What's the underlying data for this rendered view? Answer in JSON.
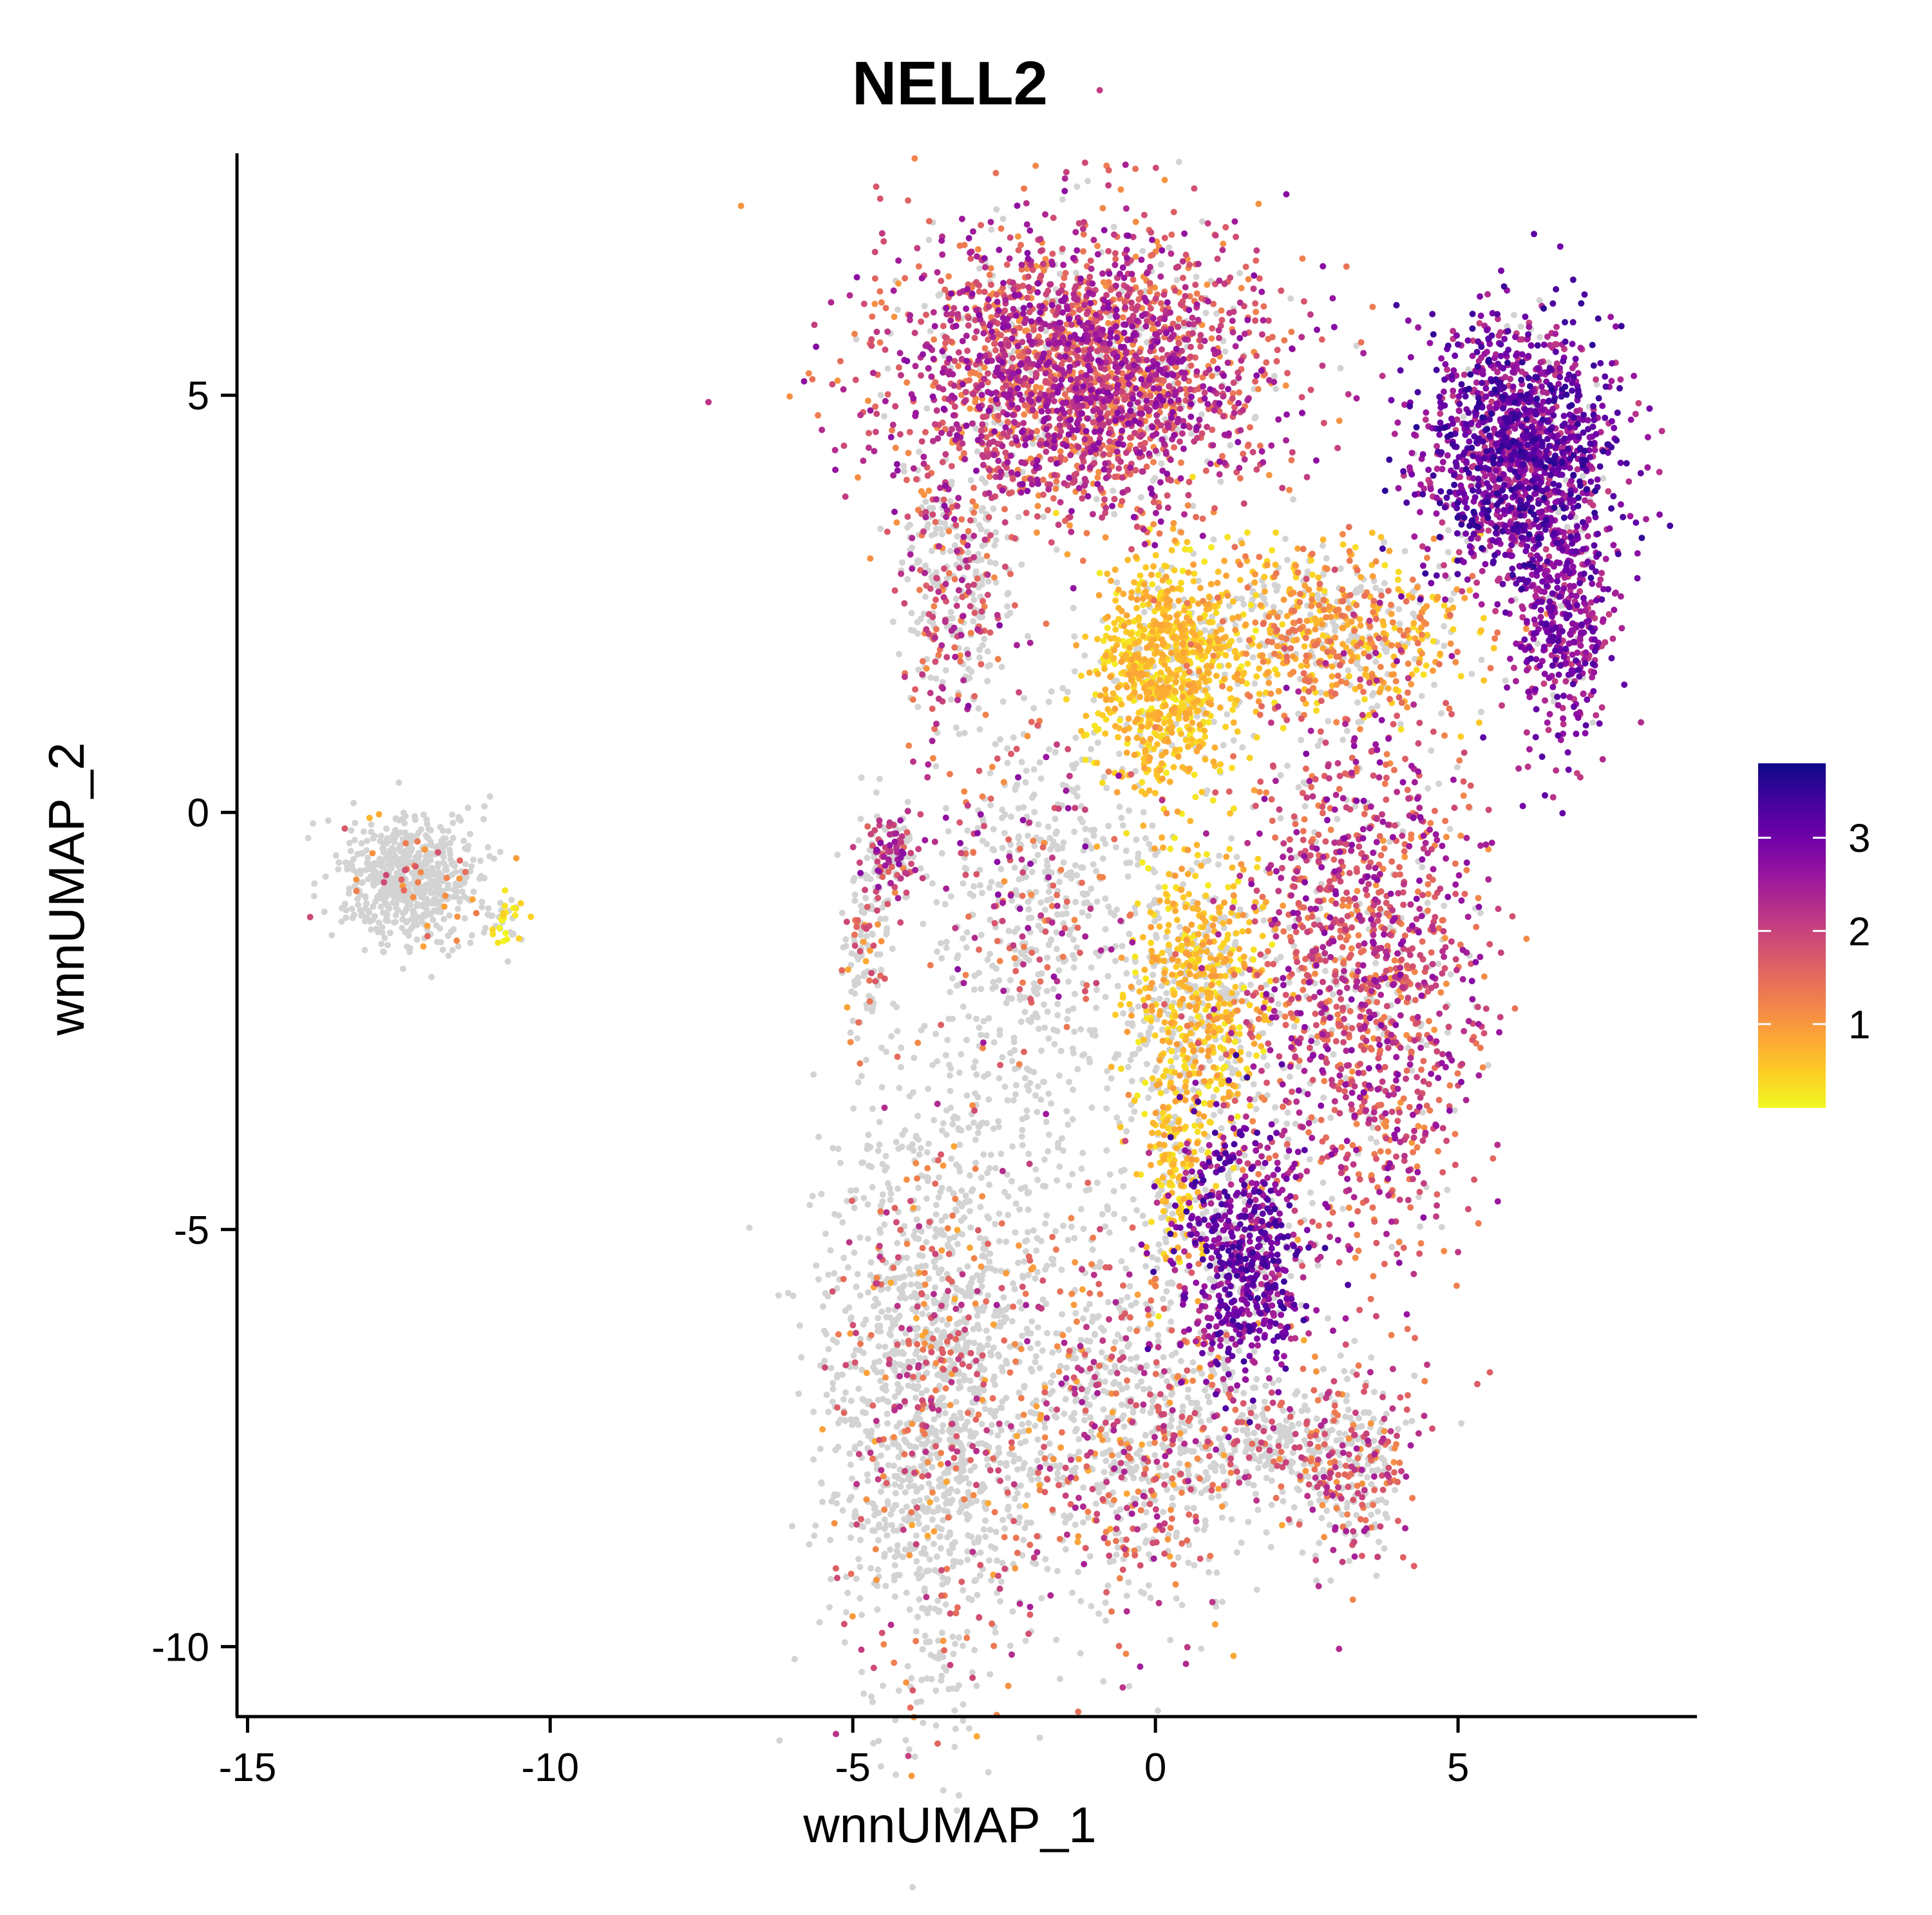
{
  "chart_data": {
    "type": "scatter",
    "title": "NELL2",
    "xlabel": "wnnUMAP_1",
    "ylabel": "wnnUMAP_2",
    "xlim": [
      -15.1,
      9.0
    ],
    "ylim": [
      -10.8,
      7.9
    ],
    "x_ticks": [
      {
        "value": -15,
        "label": "-15"
      },
      {
        "value": -10,
        "label": "-10"
      },
      {
        "value": -5,
        "label": "-5"
      },
      {
        "value": 0,
        "label": "0"
      },
      {
        "value": 5,
        "label": "5"
      }
    ],
    "y_ticks": [
      {
        "value": 5,
        "label": "5"
      },
      {
        "value": 0,
        "label": "0"
      },
      {
        "value": -5,
        "label": "-5"
      },
      {
        "value": -10,
        "label": "-10"
      }
    ],
    "color_scale": {
      "name": "plasma",
      "range": [
        0.1,
        3.8
      ],
      "stops": [
        "#f0f921",
        "#fdca26",
        "#fb9f3a",
        "#ed7953",
        "#d8576b",
        "#bd3786",
        "#9c179e",
        "#7201a8",
        "#46039f",
        "#0d0887"
      ],
      "ticks": [
        {
          "value": 1,
          "label": "1"
        },
        {
          "value": 2,
          "label": "2"
        },
        {
          "value": 3,
          "label": "3"
        }
      ]
    },
    "zero_color": "#d3d3d3",
    "grid": false,
    "legend": "right",
    "clusters": [
      {
        "cx": -12.3,
        "cy": -0.8,
        "sx": 0.55,
        "sy": 0.35,
        "n": 650,
        "frac": 0.06,
        "expr": [
          0.7,
          2.0
        ]
      },
      {
        "cx": -10.7,
        "cy": -1.3,
        "sx": 0.15,
        "sy": 0.15,
        "n": 40,
        "frac": 0.5,
        "expr": [
          0.1,
          0.5
        ]
      },
      {
        "cx": -1.2,
        "cy": 5.3,
        "sx": 1.55,
        "sy": 0.85,
        "n": 2600,
        "frac": 0.9,
        "expr": [
          1.0,
          2.8
        ]
      },
      {
        "cx": 0.2,
        "cy": 1.7,
        "sx": 0.6,
        "sy": 0.7,
        "n": 900,
        "frac": 0.85,
        "expr": [
          0.2,
          0.9
        ]
      },
      {
        "cx": 2.8,
        "cy": 2.2,
        "sx": 1.2,
        "sy": 0.5,
        "n": 700,
        "frac": 0.7,
        "expr": [
          0.3,
          1.5
        ]
      },
      {
        "cx": 6.0,
        "cy": 4.3,
        "sx": 0.8,
        "sy": 0.75,
        "n": 1500,
        "frac": 0.95,
        "expr": [
          2.0,
          3.6
        ]
      },
      {
        "cx": 6.7,
        "cy": 2.2,
        "sx": 0.4,
        "sy": 0.7,
        "n": 400,
        "frac": 0.95,
        "expr": [
          2.0,
          3.3
        ]
      },
      {
        "cx": -3.3,
        "cy": 2.8,
        "sx": 0.5,
        "sy": 0.9,
        "n": 400,
        "frac": 0.5,
        "expr": [
          1.0,
          2.5
        ]
      },
      {
        "cx": -2.0,
        "cy": -0.8,
        "sx": 0.9,
        "sy": 1.1,
        "n": 500,
        "frac": 0.3,
        "expr": [
          1.0,
          2.8
        ]
      },
      {
        "cx": -4.4,
        "cy": -0.5,
        "sx": 0.25,
        "sy": 0.25,
        "n": 150,
        "frac": 0.6,
        "expr": [
          1.5,
          2.8
        ]
      },
      {
        "cx": -4.8,
        "cy": -1.6,
        "sx": 0.2,
        "sy": 0.5,
        "n": 120,
        "frac": 0.3,
        "expr": [
          0.8,
          2.0
        ]
      },
      {
        "cx": 0.7,
        "cy": -2.2,
        "sx": 0.6,
        "sy": 0.9,
        "n": 800,
        "frac": 0.6,
        "expr": [
          0.2,
          1.0
        ]
      },
      {
        "cx": 3.4,
        "cy": -1.9,
        "sx": 1.0,
        "sy": 1.7,
        "n": 1500,
        "frac": 0.85,
        "expr": [
          1.0,
          2.8
        ]
      },
      {
        "cx": 1.4,
        "cy": -5.3,
        "sx": 0.55,
        "sy": 0.8,
        "n": 700,
        "frac": 0.85,
        "expr": [
          2.2,
          3.5
        ]
      },
      {
        "cx": 0.3,
        "cy": -4.3,
        "sx": 0.25,
        "sy": 0.6,
        "n": 150,
        "frac": 0.8,
        "expr": [
          0.2,
          0.8
        ]
      },
      {
        "cx": -3.7,
        "cy": -7.0,
        "sx": 0.9,
        "sy": 1.8,
        "n": 1600,
        "frac": 0.2,
        "expr": [
          0.8,
          2.3
        ]
      },
      {
        "cx": -0.4,
        "cy": -7.5,
        "sx": 1.0,
        "sy": 1.1,
        "n": 900,
        "frac": 0.4,
        "expr": [
          0.8,
          2.5
        ]
      },
      {
        "cx": 3.2,
        "cy": -7.8,
        "sx": 0.55,
        "sy": 0.55,
        "n": 350,
        "frac": 0.5,
        "expr": [
          1.0,
          2.5
        ]
      },
      {
        "cx": 1.8,
        "cy": -7.6,
        "sx": 0.6,
        "sy": 0.3,
        "n": 200,
        "frac": 0.3,
        "expr": [
          1.0,
          2.2
        ]
      },
      {
        "cx": -1.5,
        "cy": -3.5,
        "sx": 1.2,
        "sy": 1.5,
        "n": 300,
        "frac": 0.05,
        "expr": [
          1.0,
          2.0
        ]
      }
    ]
  }
}
